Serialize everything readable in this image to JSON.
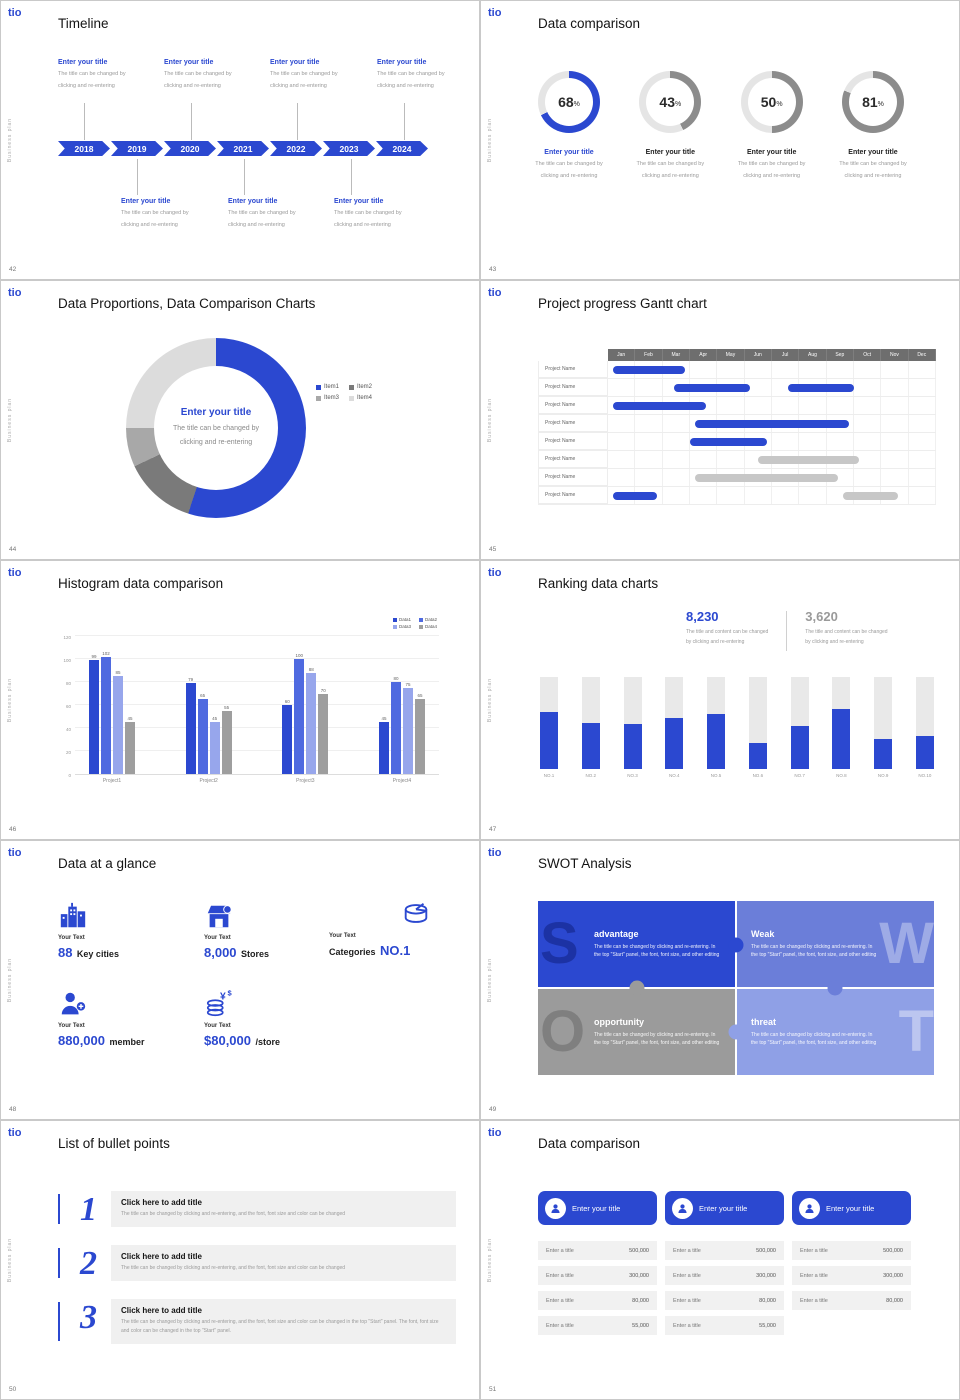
{
  "global": {
    "logo": "tio",
    "side_text": "Business plan",
    "accent": "#2b48d0"
  },
  "slides": {
    "s42": {
      "page": "42",
      "title": "Timeline",
      "years": [
        "2018",
        "2019",
        "2020",
        "2021",
        "2022",
        "2023",
        "2024"
      ],
      "entry": {
        "title": "Enter your title",
        "line1": "The title can be changed by",
        "line2": "clicking and re-entering"
      }
    },
    "s43": {
      "page": "43",
      "title": "Data comparison",
      "entry_title": "Enter your title",
      "line1": "The title can be changed by",
      "line2": "clicking and re-entering"
    },
    "s44": {
      "page": "44",
      "title": "Data Proportions, Data Comparison Charts",
      "center_title": "Enter your title",
      "center_line1": "The title can be changed by",
      "center_line2": "clicking and re-entering"
    },
    "s45": {
      "page": "45",
      "title": "Project progress Gantt chart"
    },
    "s46": {
      "page": "46",
      "title": "Histogram data comparison"
    },
    "s47": {
      "page": "47",
      "title": "Ranking data charts",
      "stat1": {
        "value": "8,230",
        "line1": "The title and content can be changed",
        "line2": "by clicking and re-entering"
      },
      "stat2": {
        "value": "3,620",
        "line1": "The title and content can be changed",
        "line2": "by clicking and re-entering"
      }
    },
    "s48": {
      "page": "48",
      "title": "Data at a glance",
      "stats": [
        {
          "label_top": "Your Text",
          "num": "88",
          "label": "Key cities"
        },
        {
          "label_top": "Your Text",
          "num": "8,000",
          "label": "Stores"
        },
        {
          "label_top": "Your Text",
          "pre": "Categories",
          "num": "NO.1"
        },
        {
          "label_top": "Your Text",
          "num": "880,000",
          "label": "member"
        },
        {
          "label_top": "Your Text",
          "num": "$80,000",
          "label": "/store"
        }
      ]
    },
    "s49": {
      "page": "49",
      "title": "SWOT Analysis",
      "quadrants": [
        {
          "letter": "S",
          "heading": "advantage",
          "body": "The title can be changed by clicking and re-entering. In the top \"Start\" panel, the font, font size, and other editing"
        },
        {
          "letter": "W",
          "heading": "Weak",
          "body": "The title can be changed by clicking and re-entering. In the top \"Start\" panel, the font, font size, and other editing"
        },
        {
          "letter": "O",
          "heading": "opportunity",
          "body": "The title can be changed by clicking and re-entering. In the top \"Start\" panel, the font, font size, and other editing"
        },
        {
          "letter": "T",
          "heading": "threat",
          "body": "The title can be changed by clicking and re-entering. In the top \"Start\" panel, the font, font size, and other editing"
        }
      ]
    },
    "s50": {
      "page": "50",
      "title": "List of bullet points",
      "items": [
        {
          "num": "1",
          "heading": "Click here to add title",
          "body": "The title can be changed by clicking and re-entering, and the font, font size and color can be changed"
        },
        {
          "num": "2",
          "heading": "Click here to add title",
          "body": "The title can be changed by clicking and re-entering, and the font, font size and color can be changed"
        },
        {
          "num": "3",
          "heading": "Click here to add title",
          "body": "The title can be changed by clicking and re-entering, and the font, font size and color can be changed in the top \"Start\" panel. The font, font size and color can be changed in the top \"Start\" panel."
        }
      ]
    },
    "s51": {
      "page": "51",
      "title": "Data comparison",
      "cards": [
        {
          "header": "Enter your title",
          "rows": [
            {
              "label": "Enter a title",
              "value": "500,000"
            },
            {
              "label": "Enter a title",
              "value": "300,000"
            },
            {
              "label": "Enter a title",
              "value": "80,000"
            },
            {
              "label": "Enter a title",
              "value": "55,000"
            }
          ]
        },
        {
          "header": "Enter your title",
          "rows": [
            {
              "label": "Enter a title",
              "value": "500,000"
            },
            {
              "label": "Enter a title",
              "value": "300,000"
            },
            {
              "label": "Enter a title",
              "value": "80,000"
            },
            {
              "label": "Enter a title",
              "value": "55,000"
            }
          ]
        },
        {
          "header": "Enter your title",
          "rows": [
            {
              "label": "Enter a title",
              "value": "500,000"
            },
            {
              "label": "Enter a title",
              "value": "300,000"
            },
            {
              "label": "Enter a title",
              "value": "80,000"
            }
          ]
        }
      ]
    }
  },
  "chart_data": [
    {
      "type": "pie",
      "subtype": "progress_rings",
      "slide": "43",
      "values": [
        68,
        43,
        50,
        81
      ],
      "unit": "%",
      "colors": [
        "#2b48d0",
        "#8c8c8c",
        "#8c8c8c",
        "#8c8c8c"
      ],
      "track": "#e5e5e5"
    },
    {
      "type": "pie",
      "subtype": "donut",
      "slide": "44",
      "labels": [
        "Item1",
        "Item2",
        "Item3",
        "Item4"
      ],
      "values": [
        55,
        13,
        7,
        25
      ],
      "colors": [
        "#2b48d0",
        "#7a7a7a",
        "#a8a8a8",
        "#dcdcdc"
      ]
    },
    {
      "type": "gantt",
      "slide": "45",
      "months": [
        "Jan",
        "Feb",
        "Mar",
        "Apr",
        "May",
        "Jun",
        "Jul",
        "Aug",
        "Sep",
        "Oct",
        "Nov",
        "Dec"
      ],
      "row_label": "Project Name",
      "rows": [
        {
          "bars": [
            {
              "start": 0.2,
              "end": 2.8,
              "color": "blue"
            }
          ]
        },
        {
          "bars": [
            {
              "start": 2.4,
              "end": 5.2,
              "color": "blue"
            },
            {
              "start": 6.6,
              "end": 9.0,
              "color": "blue"
            }
          ]
        },
        {
          "bars": [
            {
              "start": 0.2,
              "end": 3.6,
              "color": "blue"
            }
          ]
        },
        {
          "bars": [
            {
              "start": 3.2,
              "end": 8.8,
              "color": "blue"
            }
          ]
        },
        {
          "bars": [
            {
              "start": 3.0,
              "end": 5.8,
              "color": "blue"
            }
          ]
        },
        {
          "bars": [
            {
              "start": 5.5,
              "end": 9.2,
              "color": "gray"
            }
          ]
        },
        {
          "bars": [
            {
              "start": 3.2,
              "end": 8.4,
              "color": "gray"
            }
          ]
        },
        {
          "bars": [
            {
              "start": 0.2,
              "end": 1.8,
              "color": "blue"
            },
            {
              "start": 8.6,
              "end": 10.6,
              "color": "gray"
            }
          ]
        }
      ]
    },
    {
      "type": "bar",
      "subtype": "grouped",
      "slide": "46",
      "title": "Histogram data comparison",
      "categories": [
        "Project1",
        "Project2",
        "Project3",
        "Project4"
      ],
      "series": [
        {
          "name": "Data1",
          "color": "#2b48d0",
          "values": [
            99,
            79,
            60,
            45
          ]
        },
        {
          "name": "Data2",
          "color": "#4f6ae0",
          "values": [
            102,
            65,
            100,
            80
          ]
        },
        {
          "name": "Data3",
          "color": "#97a6ec",
          "values": [
            85,
            45,
            88,
            75
          ]
        },
        {
          "name": "Data4",
          "color": "#9e9e9e",
          "values": [
            45,
            55,
            70,
            65
          ]
        }
      ],
      "ylim": [
        0,
        120
      ],
      "yticks": [
        0,
        20,
        40,
        60,
        80,
        100,
        120
      ],
      "grid": true,
      "legend_position": "top-right"
    },
    {
      "type": "bar",
      "subtype": "ranking",
      "slide": "47",
      "title": "Ranking data charts",
      "categories": [
        "NO.1",
        "NO.2",
        "NO.3",
        "NO.4",
        "NO.5",
        "NO.6",
        "NO.7",
        "NO.8",
        "NO.9",
        "NO.10"
      ],
      "values": [
        62,
        50,
        49,
        55,
        60,
        28,
        47,
        65,
        33,
        36
      ],
      "max": 100
    }
  ]
}
